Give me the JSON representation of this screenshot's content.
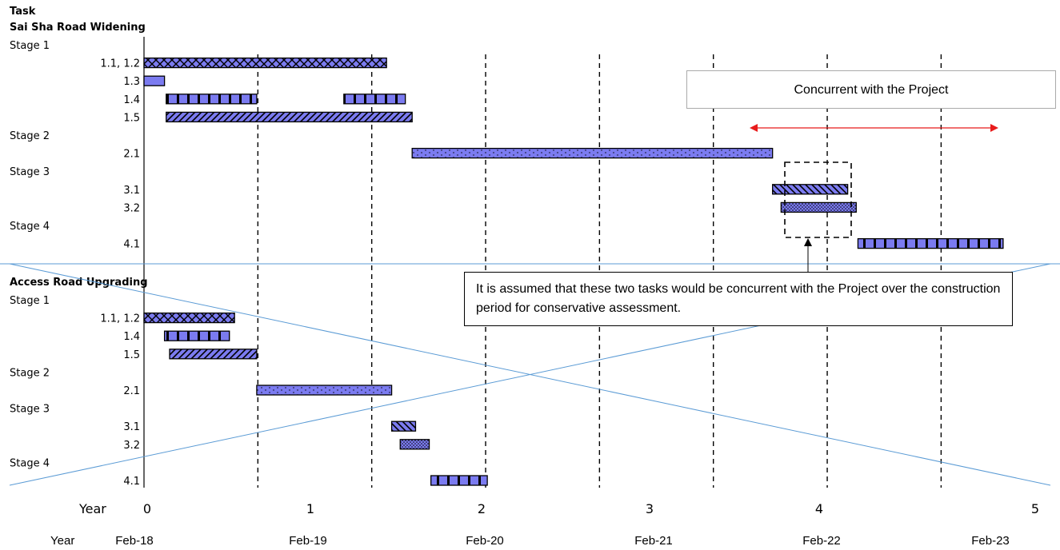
{
  "chart_data": {
    "type": "gantt",
    "title": "Task",
    "x_axis": {
      "label": "Year",
      "ticks": [
        "0",
        "1",
        "2",
        "3",
        "4",
        "5"
      ]
    },
    "calendar_axis": {
      "label": "Year",
      "ticks": [
        "Feb-18",
        "Feb-19",
        "Feb-20",
        "Feb-21",
        "Feb-22",
        "Feb-23"
      ]
    },
    "sections": [
      {
        "name": "Sai Sha Road Widening",
        "rows": [
          {
            "label": "Stage 1",
            "heading": true
          },
          {
            "label": "1.1, 1.2",
            "pattern": "cross",
            "bars": [
              [
                0,
                1.42
              ]
            ]
          },
          {
            "label": "1.3",
            "pattern": "solid",
            "bars": [
              [
                0,
                0.12
              ]
            ]
          },
          {
            "label": "1.4",
            "pattern": "vlines",
            "bars": [
              [
                0.13,
                0.66
              ],
              [
                1.17,
                1.53
              ]
            ]
          },
          {
            "label": "1.5",
            "pattern": "diag",
            "bars": [
              [
                0.13,
                1.57
              ]
            ]
          },
          {
            "label": "Stage 2",
            "heading": true
          },
          {
            "label": "2.1",
            "pattern": "dots",
            "bars": [
              [
                1.57,
                3.68
              ]
            ]
          },
          {
            "label": "Stage 3",
            "heading": true
          },
          {
            "label": "3.1",
            "pattern": "diagb",
            "bars": [
              [
                3.68,
                4.12
              ]
            ]
          },
          {
            "label": "3.2",
            "pattern": "dense",
            "bars": [
              [
                3.73,
                4.17
              ]
            ]
          },
          {
            "label": "Stage 4",
            "heading": true
          },
          {
            "label": "4.1",
            "pattern": "vlines",
            "bars": [
              [
                4.18,
                5.03
              ]
            ]
          }
        ]
      },
      {
        "name": "Access Road Upgrading",
        "rows": [
          {
            "label": "Stage 1",
            "heading": true
          },
          {
            "label": "1.1, 1.2",
            "pattern": "cross",
            "bars": [
              [
                0,
                0.53
              ]
            ]
          },
          {
            "label": "1.4",
            "pattern": "vlines",
            "bars": [
              [
                0.12,
                0.5
              ]
            ]
          },
          {
            "label": "1.5",
            "pattern": "diag",
            "bars": [
              [
                0.15,
                0.66
              ]
            ]
          },
          {
            "label": "Stage 2",
            "heading": true
          },
          {
            "label": "2.1",
            "pattern": "dots",
            "bars": [
              [
                0.66,
                1.45
              ]
            ]
          },
          {
            "label": "Stage 3",
            "heading": true
          },
          {
            "label": "3.1",
            "pattern": "diagb",
            "bars": [
              [
                1.45,
                1.59
              ]
            ]
          },
          {
            "label": "3.2",
            "pattern": "dense",
            "bars": [
              [
                1.5,
                1.67
              ]
            ]
          },
          {
            "label": "Stage 4",
            "heading": true
          },
          {
            "label": "4.1",
            "pattern": "vlines",
            "bars": [
              [
                1.68,
                2.01
              ]
            ]
          }
        ]
      }
    ],
    "annotations": {
      "concurrent_label": "Concurrent with the Project",
      "assumption_note": "It is assumed that these two tasks would be concurrent with the Project over the construction period for conservative assessment."
    },
    "colors": {
      "bar_fill": "#7b7bf0",
      "bar_border": "#000000",
      "crossout": "#5b9bd5",
      "arrow": "#e81b1b"
    }
  }
}
